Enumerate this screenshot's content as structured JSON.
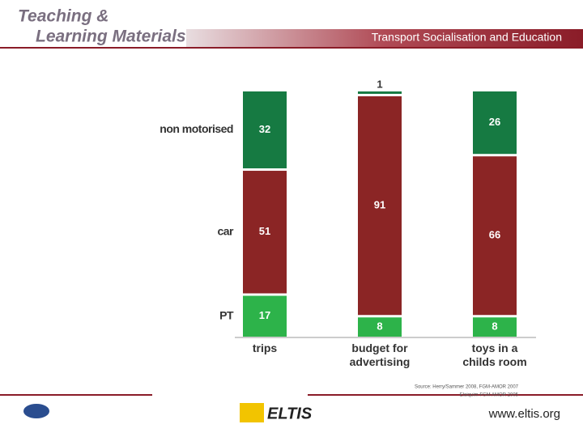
{
  "header": {
    "title_line1": "Teaching &",
    "title_line2": "Learning Materials",
    "banner": "Transport Socialisation and Education"
  },
  "footer": {
    "source_line1": "Source: Herry/Sammer 2008, FGM-AMOR 2007",
    "source_line2": "Elaiquim FGM AMOR 2005",
    "logo": "ELTIS",
    "url": "www.eltis.org"
  },
  "chart_data": {
    "type": "stacked_bar",
    "categories": [
      "trips",
      "budget for advertising",
      "toys in a childs room"
    ],
    "series": [
      {
        "name": "PT",
        "color": "#2db34a",
        "values": [
          17,
          8,
          8
        ]
      },
      {
        "name": "car",
        "color": "#8b2525",
        "values": [
          51,
          91,
          66
        ]
      },
      {
        "name": "non motorised",
        "color": "#167a42",
        "values": [
          32,
          1,
          26
        ]
      }
    ]
  }
}
